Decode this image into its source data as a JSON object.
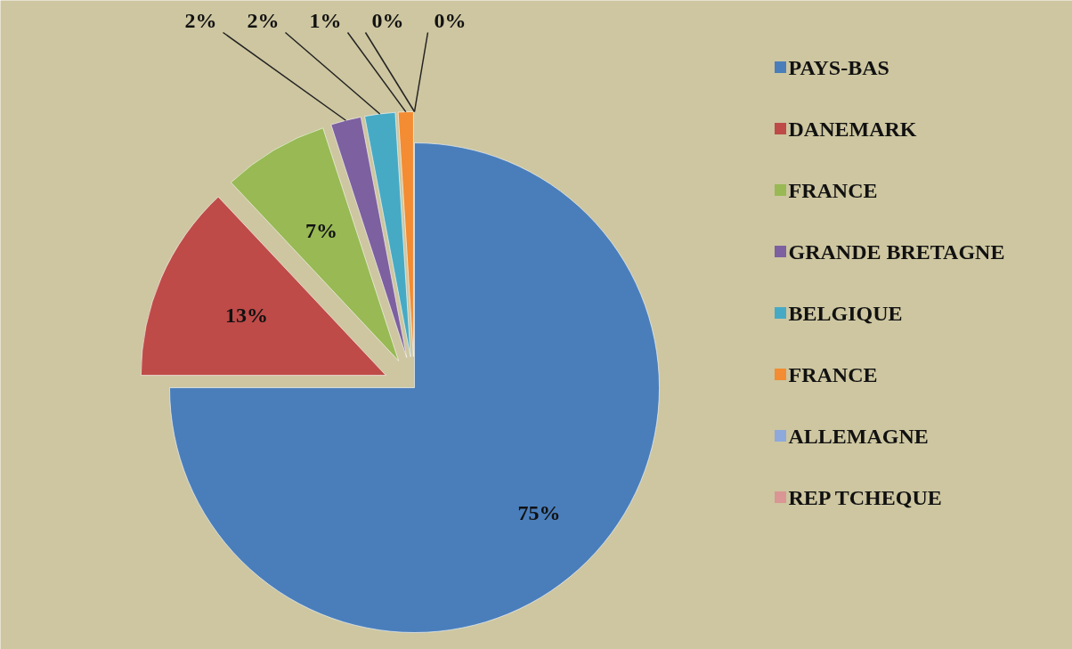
{
  "chart_data": {
    "type": "pie",
    "categories": [
      "PAYS-BAS",
      "DANEMARK",
      "FRANCE",
      "GRANDE BRETAGNE",
      "BELGIQUE",
      "FRANCE",
      "ALLEMAGNE",
      "REP TCHEQUE"
    ],
    "values": [
      75,
      13,
      7,
      2,
      2,
      1,
      0,
      0
    ],
    "colors": [
      "#4a7ebb",
      "#be4b48",
      "#98b954",
      "#7d60a0",
      "#46aac5",
      "#f38c32",
      "#8ea9db",
      "#d99694"
    ],
    "value_labels": [
      "75%",
      "13%",
      "7%",
      "2%",
      "2%",
      "1%",
      "0%",
      "0%"
    ],
    "legend": "right"
  }
}
